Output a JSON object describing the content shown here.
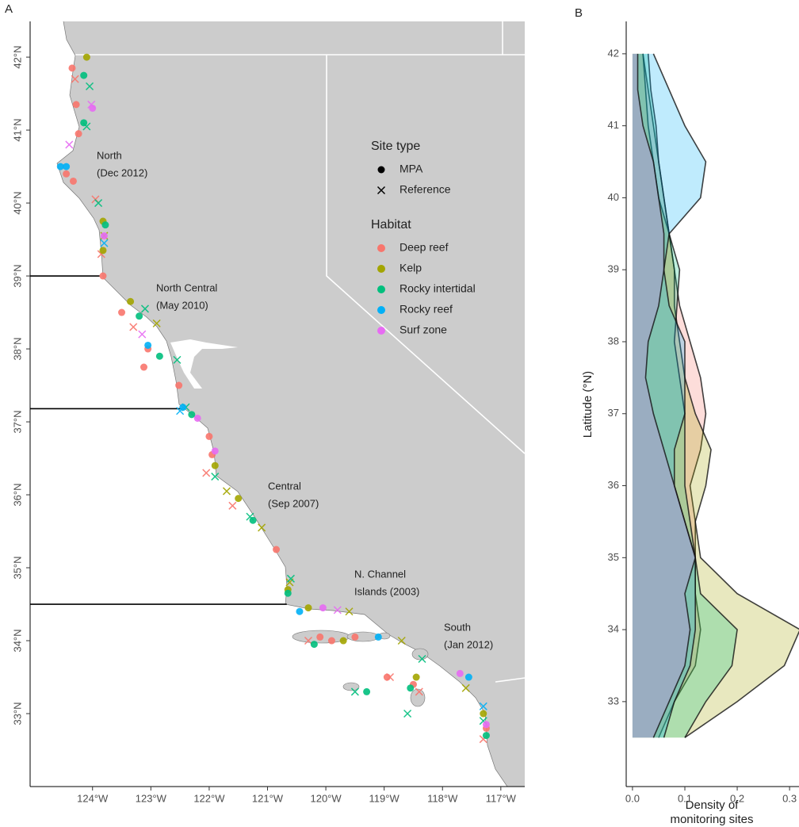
{
  "chart_data": [
    {
      "type": "map",
      "panel": "A",
      "xlim": [
        -125.07,
        -116.59
      ],
      "ylim": [
        32.0,
        42.49
      ],
      "xticks": [
        {
          "value": -124,
          "label": "124°W"
        },
        {
          "value": -123,
          "label": "123°W"
        },
        {
          "value": -122,
          "label": "122°W"
        },
        {
          "value": -121,
          "label": "121°W"
        },
        {
          "value": -120,
          "label": "120°W"
        },
        {
          "value": -119,
          "label": "119°W"
        },
        {
          "value": -118,
          "label": "118°W"
        },
        {
          "value": -117,
          "label": "117°W"
        }
      ],
      "yticks": [
        {
          "value": 33,
          "label": "33°N"
        },
        {
          "value": 34,
          "label": "34°N"
        },
        {
          "value": 35,
          "label": "35°N"
        },
        {
          "value": 36,
          "label": "36°N"
        },
        {
          "value": 37,
          "label": "37°N"
        },
        {
          "value": 38,
          "label": "38°N"
        },
        {
          "value": 39,
          "label": "39°N"
        },
        {
          "value": 40,
          "label": "40°N"
        },
        {
          "value": 41,
          "label": "41°N"
        },
        {
          "value": 42,
          "label": "42°N"
        }
      ],
      "regions": [
        {
          "lines": [
            "North",
            "(Dec 2012)"
          ]
        },
        {
          "lines": [
            "North Central",
            "(May 2010)"
          ]
        },
        {
          "lines": [
            "Central",
            "(Sep 2007)"
          ]
        },
        {
          "lines": [
            "N. Channel",
            "Islands (2003)"
          ]
        },
        {
          "lines": [
            "South",
            "(Jan 2012)"
          ]
        }
      ],
      "boundaries": [
        {
          "lat": 39.0,
          "lon": -123.88
        },
        {
          "lat": 37.18,
          "lon": -122.48
        },
        {
          "lat": 34.5,
          "lon": -120.67
        }
      ],
      "site_type_legend": {
        "title": "Site type",
        "items": [
          {
            "name": "MPA",
            "shape": "circle"
          },
          {
            "name": "Reference",
            "shape": "cross"
          }
        ]
      },
      "habitat_legend_title": "Habitat",
      "series": [
        {
          "name": "Deep reef",
          "color": "#F8766D",
          "sites": [
            {
              "x": [
                -124.35,
                -124.28,
                -124.24,
                -124.33,
                -123.82,
                -123.5,
                -123.05,
                -123.12,
                -122.52,
                -122.0,
                -121.95,
                -120.85,
                -120.1,
                -119.9,
                -119.5,
                -118.95,
                -118.5,
                -117.25,
                -124.45
              ],
              "y": [
                41.85,
                41.35,
                40.95,
                40.3,
                39.0,
                38.5,
                38.0,
                37.75,
                37.5,
                36.8,
                36.55,
                35.25,
                34.05,
                34.0,
                34.05,
                33.5,
                33.4,
                32.8,
                40.4
              ]
            },
            {
              "x": [
                -124.3,
                -123.95,
                -123.85,
                -123.3,
                -122.05,
                -121.6,
                -120.3,
                -118.9,
                -118.4,
                -117.3
              ],
              "y": [
                41.7,
                40.05,
                39.3,
                38.3,
                36.3,
                35.85,
                34.0,
                33.5,
                33.3,
                32.65
              ]
            }
          ]
        },
        {
          "name": "Kelp",
          "color": "#A3A500",
          "sites": [
            {
              "x": [
                -124.1,
                -123.82,
                -123.82,
                -123.35,
                -121.9,
                -121.5,
                -120.65,
                -120.3,
                -119.7,
                -118.45,
                -117.3
              ],
              "y": [
                42.0,
                39.75,
                39.35,
                38.65,
                36.4,
                35.95,
                34.7,
                34.45,
                34.0,
                33.5,
                33.0
              ]
            },
            {
              "x": [
                -123.8,
                -122.9,
                -121.7,
                -121.1,
                -120.62,
                -119.6,
                -118.7,
                -117.6
              ],
              "y": [
                39.55,
                38.35,
                36.05,
                35.55,
                34.8,
                34.4,
                34.0,
                33.35
              ]
            }
          ]
        },
        {
          "name": "Rocky intertidal",
          "color": "#00BF7D",
          "sites": [
            {
              "x": [
                -124.15,
                -124.15,
                -123.78,
                -123.2,
                -122.85,
                -122.3,
                -121.25,
                -120.65,
                -120.2,
                -119.3,
                -118.55,
                -117.25
              ],
              "y": [
                41.75,
                41.1,
                39.7,
                38.45,
                37.9,
                37.1,
                35.65,
                34.65,
                33.95,
                33.3,
                33.35,
                32.7
              ]
            },
            {
              "x": [
                -124.05,
                -124.1,
                -123.9,
                -123.1,
                -122.55,
                -122.4,
                -121.9,
                -121.3,
                -120.6,
                -119.5,
                -118.6,
                -118.35,
                -117.3
              ],
              "y": [
                41.6,
                41.05,
                40.0,
                38.55,
                37.85,
                37.2,
                36.25,
                35.7,
                34.85,
                33.3,
                33.0,
                33.75,
                32.9
              ]
            }
          ]
        },
        {
          "name": "Rocky reef",
          "color": "#00B0F6",
          "sites": [
            {
              "x": [
                -124.55,
                -124.45,
                -123.05,
                -122.45,
                -120.45,
                -119.1,
                -117.55
              ],
              "y": [
                40.5,
                40.5,
                38.05,
                37.2,
                34.4,
                34.05,
                33.5
              ]
            },
            {
              "x": [
                -123.8,
                -122.5,
                -117.3
              ],
              "y": [
                39.45,
                37.15,
                33.1
              ]
            }
          ]
        },
        {
          "name": "Surf zone",
          "color": "#E76BF3",
          "sites": [
            {
              "x": [
                -124.0,
                -123.8,
                -122.2,
                -121.9,
                -120.05,
                -117.7,
                -117.25
              ],
              "y": [
                41.3,
                39.55,
                37.05,
                36.6,
                34.45,
                33.55,
                32.85
              ]
            },
            {
              "x": [
                -124.02,
                -124.4,
                -123.15,
                -119.8
              ],
              "y": [
                41.35,
                40.8,
                38.2,
                34.42
              ]
            }
          ]
        }
      ]
    },
    {
      "type": "density",
      "panel": "B",
      "ylabel": "Latitude (°N)",
      "xlabel": [
        "Density of",
        "monitoring sites"
      ],
      "xlim": [
        -0.012,
        0.318
      ],
      "ylim": [
        31.82,
        42.45
      ],
      "xticks": [
        {
          "value": 0,
          "label": "0.0"
        },
        0.1,
        0.2,
        0.3
      ],
      "yticks": [
        33,
        34,
        35,
        36,
        37,
        38,
        39,
        40,
        41,
        42
      ],
      "y": [
        32.5,
        33,
        33.5,
        34,
        34.5,
        35,
        35.5,
        36,
        36.5,
        37,
        37.5,
        38,
        38.5,
        39,
        39.5,
        40,
        40.5,
        41,
        41.5,
        42
      ],
      "series": [
        {
          "color": "#F8766D",
          "values": [
            0.05,
            0.08,
            0.12,
            0.13,
            0.12,
            0.12,
            0.12,
            0.11,
            0.13,
            0.14,
            0.13,
            0.11,
            0.09,
            0.08,
            0.07,
            0.06,
            0.05,
            0.04,
            0.03,
            0.02
          ]
        },
        {
          "color": "#A3A500",
          "values": [
            0.1,
            0.2,
            0.29,
            0.32,
            0.2,
            0.13,
            0.12,
            0.14,
            0.15,
            0.12,
            0.1,
            0.09,
            0.08,
            0.08,
            0.07,
            0.05,
            0.04,
            0.03,
            0.025,
            0.02
          ]
        },
        {
          "color": "#00BF7D",
          "values": [
            0.1,
            0.14,
            0.19,
            0.2,
            0.13,
            0.12,
            0.11,
            0.1,
            0.1,
            0.1,
            0.09,
            0.08,
            0.085,
            0.09,
            0.07,
            0.06,
            0.05,
            0.045,
            0.035,
            0.03
          ]
        },
        {
          "color": "#00B0F6",
          "values": [
            0.06,
            0.08,
            0.11,
            0.12,
            0.12,
            0.12,
            0.1,
            0.08,
            0.08,
            0.1,
            0.1,
            0.1,
            0.07,
            0.06,
            0.07,
            0.13,
            0.14,
            0.1,
            0.07,
            0.04
          ]
        },
        {
          "color": "#E76BF3",
          "values": [
            0.04,
            0.07,
            0.1,
            0.11,
            0.1,
            0.12,
            0.1,
            0.08,
            0.06,
            0.04,
            0.025,
            0.03,
            0.05,
            0.06,
            0.06,
            0.05,
            0.04,
            0.02,
            0.01,
            0.01
          ]
        }
      ]
    }
  ]
}
